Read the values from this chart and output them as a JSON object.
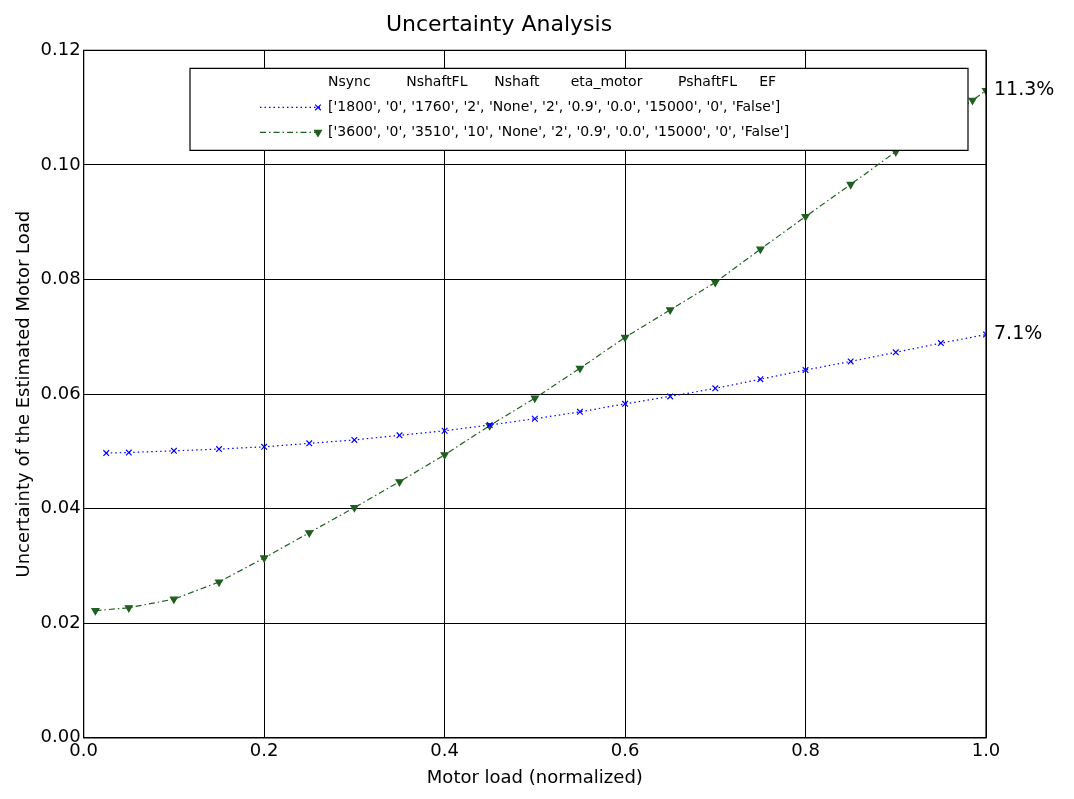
{
  "chart_data": {
    "type": "line",
    "title": "Uncertainty Analysis",
    "xlabel": "Motor load (normalized)",
    "ylabel": "Uncertainty of the Estimated Motor Load",
    "legend_title": "Nsync        NshaftFL      Nshaft       eta_motor        PshaftFL     EF",
    "xlim": [
      0,
      1
    ],
    "xticks": [
      {
        "value": 0,
        "label": "0.0"
      },
      {
        "value": 0.2,
        "label": "0.2"
      },
      {
        "value": 0.4,
        "label": "0.4"
      },
      {
        "value": 0.6,
        "label": "0.6"
      },
      {
        "value": 0.8,
        "label": "0.8"
      },
      {
        "value": 1,
        "label": "1.0"
      }
    ],
    "ylim": [
      0,
      0.12
    ],
    "yticks": [
      {
        "value": 0,
        "label": "0.00"
      },
      {
        "value": 0.02,
        "label": "0.02"
      },
      {
        "value": 0.04,
        "label": "0.04"
      },
      {
        "value": 0.06,
        "label": "0.06"
      },
      {
        "value": 0.08,
        "label": "0.08"
      },
      {
        "value": 0.1,
        "label": "0.10"
      },
      {
        "value": 0.12,
        "label": "0.12"
      }
    ],
    "grid": true,
    "legend": "top right",
    "series": [
      {
        "name": "['1800', '0', '1760', '2', 'None', '2', '0.9', '0.0', '15000', '0', 'False']",
        "color": "#0000ff",
        "marker": "cross",
        "line_style": "dotted",
        "x": [
          0.025,
          0.05,
          0.1,
          0.15,
          0.2,
          0.25,
          0.3,
          0.35,
          0.4,
          0.45,
          0.5,
          0.55,
          0.6,
          0.65,
          0.7,
          0.75,
          0.8,
          0.85,
          0.9,
          0.95,
          1.0
        ],
        "values": [
          0.0497,
          0.0498,
          0.0501,
          0.0504,
          0.0508,
          0.0514,
          0.052,
          0.0528,
          0.0536,
          0.0546,
          0.0557,
          0.0569,
          0.0583,
          0.0596,
          0.061,
          0.0626,
          0.0642,
          0.0657,
          0.0673,
          0.0689,
          0.0704
        ]
      },
      {
        "name": "['3600', '0', '3510', '10', 'None', '2', '0.9', '0.0', '15000', '0', 'False']",
        "color": "#1f5f1f",
        "marker": "triangle",
        "line_style": "dashed",
        "x": [
          0.013,
          0.05,
          0.1,
          0.15,
          0.2,
          0.25,
          0.3,
          0.35,
          0.4,
          0.45,
          0.5,
          0.55,
          0.6,
          0.65,
          0.7,
          0.75,
          0.8,
          0.85,
          0.9,
          0.985,
          1.0
        ],
        "values": [
          0.0222,
          0.0227,
          0.0242,
          0.0272,
          0.0314,
          0.0358,
          0.0402,
          0.0447,
          0.0494,
          0.0545,
          0.0593,
          0.0645,
          0.0699,
          0.0747,
          0.0795,
          0.0853,
          0.091,
          0.0966,
          0.1023,
          0.1113,
          0.113
        ]
      }
    ],
    "annotations": [
      {
        "text": "11.3%",
        "x": 1.0,
        "y": 0.113
      },
      {
        "text": "7.1%",
        "x": 1.0,
        "y": 0.0704
      }
    ]
  }
}
